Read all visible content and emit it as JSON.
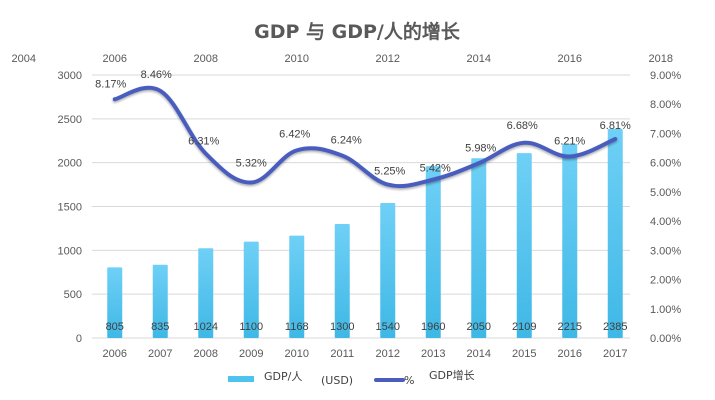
{
  "chart_data": {
    "type": "bar+line",
    "title": "GDP 与 GDP/人的增长",
    "categories": [
      "2006",
      "2007",
      "2008",
      "2009",
      "2010",
      "2011",
      "2012",
      "2013",
      "2014",
      "2015",
      "2016",
      "2017"
    ],
    "series": [
      {
        "name": "GDP/人 (USD)",
        "type": "bar",
        "axis": "primary",
        "color": "#4fc3f0",
        "values": [
          805,
          835,
          1024,
          1100,
          1168,
          1300,
          1540,
          1960,
          2050,
          2109,
          2215,
          2385
        ],
        "labels": [
          "805",
          "835",
          "1024",
          "1100",
          "1168",
          "1300",
          "1540",
          "1960",
          "2050",
          "2109",
          "2215",
          "2385"
        ]
      },
      {
        "name": "% GDP增长",
        "type": "line",
        "axis": "secondary",
        "color": "#4a5dbf",
        "x": [
          2006,
          2007,
          2008,
          2009,
          2010,
          2011,
          2012,
          2013,
          2014,
          2015,
          2016,
          2017
        ],
        "values": [
          8.17,
          8.46,
          6.31,
          5.32,
          6.42,
          6.24,
          5.25,
          5.42,
          5.98,
          6.68,
          6.21,
          6.81
        ],
        "labels": [
          "8.17%",
          "8.46%",
          "6.31%",
          "5.32%",
          "6.42%",
          "6.24%",
          "5.25%",
          "5.42%",
          "5.98%",
          "6.68%",
          "6.21%",
          "6.81%"
        ]
      }
    ],
    "y_primary": {
      "range": [
        0,
        3000
      ],
      "ticks": [
        "0",
        "500",
        "1000",
        "1500",
        "2000",
        "2500",
        "3000"
      ]
    },
    "y_secondary": {
      "range": [
        0,
        9
      ],
      "ticks": [
        "0.00%",
        "1.00%",
        "2.00%",
        "3.00%",
        "4.00%",
        "5.00%",
        "6.00%",
        "7.00%",
        "8.00%",
        "9.00%"
      ]
    },
    "x_secondary": {
      "range": [
        2004,
        2018
      ],
      "ticks": [
        "2004",
        "2006",
        "2008",
        "2010",
        "2012",
        "2014",
        "2016",
        "2018"
      ]
    },
    "grid": true,
    "legend": {
      "position": "bottom",
      "items": [
        {
          "label": "GDP/人",
          "extra": "(USD)",
          "kind": "bar"
        },
        {
          "label": "GDP增长",
          "extra": "%",
          "kind": "line"
        }
      ]
    }
  }
}
